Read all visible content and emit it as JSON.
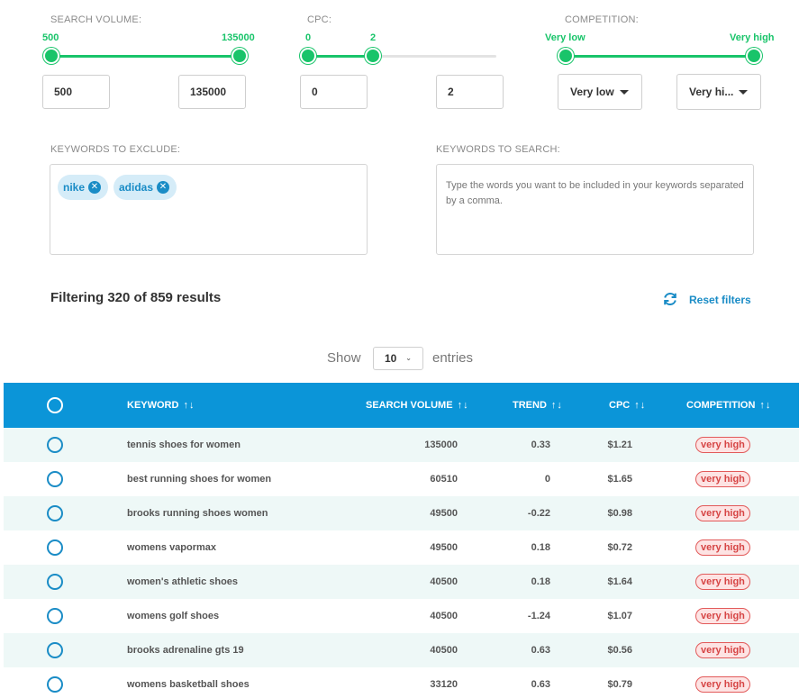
{
  "filters": {
    "search_volume": {
      "label": "SEARCH VOLUME:",
      "min_label": "500",
      "max_label": "135000",
      "min_value": "500",
      "max_value": "135000"
    },
    "cpc": {
      "label": "CPC:",
      "min_label": "0",
      "max_label": "2",
      "min_value": "0",
      "max_value": "2"
    },
    "competition": {
      "label": "COMPETITION:",
      "min_label": "Very low",
      "max_label": "Very high",
      "min_select": "Very low",
      "max_select": "Very hi..."
    }
  },
  "exclude": {
    "label": "KEYWORDS TO EXCLUDE:",
    "chips": [
      "nike",
      "adidas"
    ]
  },
  "search": {
    "label": "KEYWORDS TO SEARCH:",
    "placeholder": "Type the words you want to be included in your keywords separated by a comma."
  },
  "summary": "Filtering 320 of 859 results",
  "reset_label": "Reset filters",
  "entries": {
    "show": "Show",
    "value": "10",
    "suffix": "entries"
  },
  "table": {
    "headers": {
      "keyword": "KEYWORD",
      "volume": "SEARCH VOLUME",
      "trend": "TREND",
      "cpc": "CPC",
      "competition": "COMPETITION"
    },
    "sort_icon": "↑↓",
    "rows": [
      {
        "keyword": "tennis shoes for women",
        "volume": "135000",
        "trend": "0.33",
        "cpc": "$1.21",
        "competition": "very high"
      },
      {
        "keyword": "best running shoes for women",
        "volume": "60510",
        "trend": "0",
        "cpc": "$1.65",
        "competition": "very high"
      },
      {
        "keyword": "brooks running shoes women",
        "volume": "49500",
        "trend": "-0.22",
        "cpc": "$0.98",
        "competition": "very high"
      },
      {
        "keyword": "womens vapormax",
        "volume": "49500",
        "trend": "0.18",
        "cpc": "$0.72",
        "competition": "very high"
      },
      {
        "keyword": "women's athletic shoes",
        "volume": "40500",
        "trend": "0.18",
        "cpc": "$1.64",
        "competition": "very high"
      },
      {
        "keyword": "womens golf shoes",
        "volume": "40500",
        "trend": "-1.24",
        "cpc": "$1.07",
        "competition": "very high"
      },
      {
        "keyword": "brooks adrenaline gts 19",
        "volume": "40500",
        "trend": "0.63",
        "cpc": "$0.56",
        "competition": "very high"
      },
      {
        "keyword": "womens basketball shoes",
        "volume": "33120",
        "trend": "0.63",
        "cpc": "$0.79",
        "competition": "very high"
      }
    ]
  },
  "colors": {
    "accent_green": "#19c46a",
    "accent_blue": "#0b95d8",
    "badge_red": "#d64545"
  }
}
